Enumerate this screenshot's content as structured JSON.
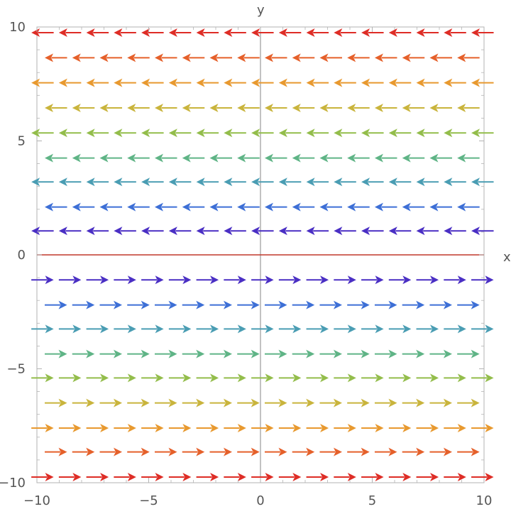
{
  "chart_data": {
    "type": "vector-field",
    "xlabel": "x",
    "ylabel": "y",
    "xlim": [
      -10,
      10
    ],
    "ylim": [
      -10,
      10
    ],
    "x_ticks": [
      {
        "value": -10,
        "label": "−10"
      },
      {
        "value": -5,
        "label": "−5"
      },
      {
        "value": 0,
        "label": "0"
      },
      {
        "value": 5,
        "label": "5"
      },
      {
        "value": 10,
        "label": "10"
      }
    ],
    "y_ticks": [
      {
        "value": -10,
        "label": "−10"
      },
      {
        "value": -5,
        "label": "−5"
      },
      {
        "value": 0,
        "label": "0"
      },
      {
        "value": 5,
        "label": "5"
      },
      {
        "value": 10,
        "label": "10"
      }
    ],
    "grid": false,
    "arrow_field": {
      "direction_rule": "arrows point left (-x) where y > 0 and right (+x) where y < 0",
      "rows": [
        {
          "y": 9.75,
          "dir": -1,
          "x_start": -9.75,
          "x_step": 1.23,
          "count": 17,
          "color": "#de2d26"
        },
        {
          "y": 8.65,
          "dir": -1,
          "x_start": -9.15,
          "x_step": 1.23,
          "count": 16,
          "color": "#e5602a"
        },
        {
          "y": 7.55,
          "dir": -1,
          "x_start": -9.75,
          "x_step": 1.23,
          "count": 17,
          "color": "#e8992f"
        },
        {
          "y": 6.45,
          "dir": -1,
          "x_start": -9.15,
          "x_step": 1.23,
          "count": 16,
          "color": "#c9b43c"
        },
        {
          "y": 5.35,
          "dir": -1,
          "x_start": -9.75,
          "x_step": 1.23,
          "count": 17,
          "color": "#93bd4b"
        },
        {
          "y": 4.25,
          "dir": -1,
          "x_start": -9.15,
          "x_step": 1.23,
          "count": 16,
          "color": "#5fb486"
        },
        {
          "y": 3.2,
          "dir": -1,
          "x_start": -9.75,
          "x_step": 1.23,
          "count": 17,
          "color": "#4a9db3"
        },
        {
          "y": 2.1,
          "dir": -1,
          "x_start": -9.15,
          "x_step": 1.23,
          "count": 16,
          "color": "#3d6fd6"
        },
        {
          "y": 1.05,
          "dir": -1,
          "x_start": -9.75,
          "x_step": 1.23,
          "count": 17,
          "color": "#4a2fc4"
        },
        {
          "y": -1.1,
          "dir": 1,
          "x_start": -9.75,
          "x_step": 1.23,
          "count": 17,
          "color": "#4a2fc4"
        },
        {
          "y": -2.2,
          "dir": 1,
          "x_start": -9.15,
          "x_step": 1.23,
          "count": 16,
          "color": "#3d6fd6"
        },
        {
          "y": -3.25,
          "dir": 1,
          "x_start": -9.75,
          "x_step": 1.23,
          "count": 17,
          "color": "#4a9db3"
        },
        {
          "y": -4.35,
          "dir": 1,
          "x_start": -9.15,
          "x_step": 1.23,
          "count": 16,
          "color": "#5fb486"
        },
        {
          "y": -5.4,
          "dir": 1,
          "x_start": -9.75,
          "x_step": 1.23,
          "count": 17,
          "color": "#93bd4b"
        },
        {
          "y": -6.5,
          "dir": 1,
          "x_start": -9.15,
          "x_step": 1.23,
          "count": 16,
          "color": "#c9b43c"
        },
        {
          "y": -7.6,
          "dir": 1,
          "x_start": -9.75,
          "x_step": 1.23,
          "count": 17,
          "color": "#e8992f"
        },
        {
          "y": -8.65,
          "dir": 1,
          "x_start": -9.15,
          "x_step": 1.23,
          "count": 16,
          "color": "#e5602a"
        },
        {
          "y": -9.75,
          "dir": 1,
          "x_start": -9.75,
          "x_step": 1.23,
          "count": 17,
          "color": "#de2d26"
        }
      ]
    },
    "reference_lines": [
      {
        "type": "horizontal",
        "y": 0,
        "color": "#c0392b"
      }
    ],
    "colors": {
      "frame": "#b3b3b3",
      "axis": "#666666"
    }
  }
}
